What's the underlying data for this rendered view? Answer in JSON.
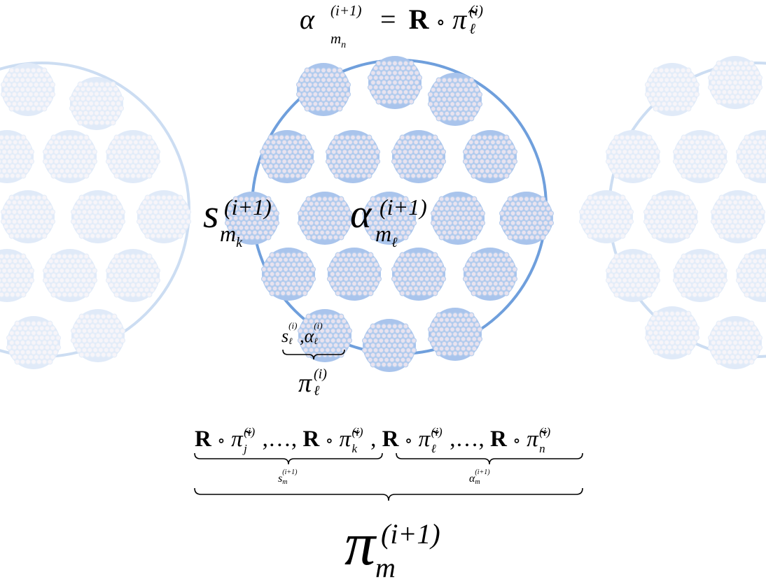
{
  "colors": {
    "ring": "#6f9fdc",
    "cluster_fill": "#a9c4ec",
    "dot_fill": "#e9e3ef",
    "dot_stroke": "#b8cfee",
    "brace": "#000000"
  },
  "equations": {
    "top": {
      "lhs_base": "α",
      "lhs_sup": "(i+1)",
      "lhs_sub": "m",
      "lhs_subsub": "n",
      "eq": "=",
      "R": "R",
      "op": "∘",
      "pi": "π̃",
      "pi_sup": "(i)",
      "pi_sub": "ℓ"
    },
    "s_label": {
      "base": "s",
      "sup": "(i+1)",
      "sub": "m",
      "subsub": "k"
    },
    "alpha_label": {
      "base": "α",
      "sup": "(i+1)",
      "sub": "m",
      "subsub": "ℓ"
    },
    "small_label": {
      "s": "s",
      "s_sup": "(i)",
      "s_sub": "ℓ",
      "comma": ",",
      "a": "α",
      "a_sup": "(i)",
      "a_sub": "ℓ"
    },
    "pi_small": {
      "base": "π",
      "sup": "(i)",
      "sub": "ℓ"
    },
    "bottom_row": {
      "t1": "R",
      "t1_op": "∘",
      "t1_pi": "π̃",
      "t1_sup": "(i)",
      "t1_sub": "j",
      "dots1": ",…,",
      "t2": "R",
      "t2_op": "∘",
      "t2_pi": "π̃",
      "t2_sup": "(i)",
      "t2_sub": "k",
      "sep": ",",
      "t3": "R",
      "t3_op": "∘",
      "t3_pi": "π̃",
      "t3_sup": "(i)",
      "t3_sub": "ℓ",
      "dots2": ",…,",
      "t4": "R",
      "t4_op": "∘",
      "t4_pi": "π̃",
      "t4_sup": "(i)",
      "t4_sub": "n"
    },
    "brace_left_label": {
      "base": "s",
      "sup": "(i+1)",
      "sub": "m"
    },
    "brace_right_label": {
      "base": "α",
      "sup": "(i+1)",
      "sub": "m"
    },
    "big_pi": {
      "base": "π",
      "sup": "(i+1)",
      "sub": "m"
    }
  }
}
